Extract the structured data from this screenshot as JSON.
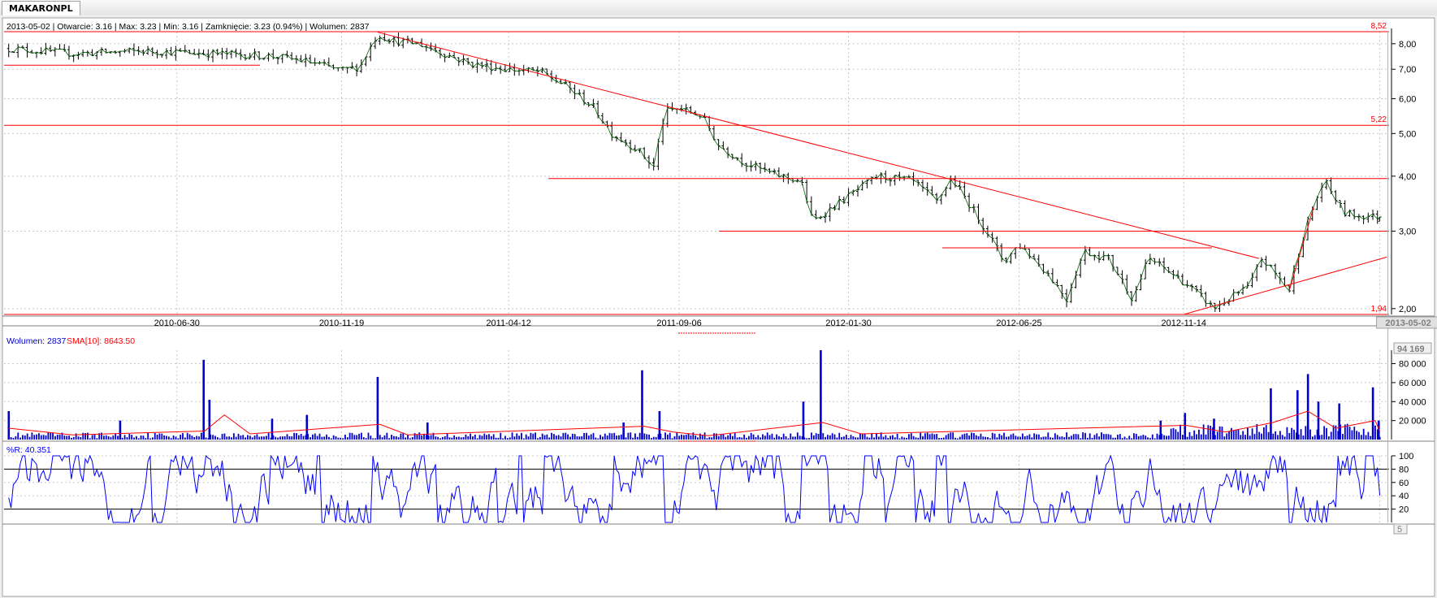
{
  "tab": {
    "label": "MAKARONPL"
  },
  "info_bar": "2013-05-02 | Otwarcie: 3.16 | Max: 3.23 | Min: 3.16 | Zamknięcie: 3.23 (0.94%)  | Wolumen: 2837",
  "cursor_date": "2013-05-02",
  "colors": {
    "grid": "#c8c8c8",
    "price_line": "#006400",
    "bars": "#000000",
    "levels": "#ff0000",
    "volume": "#0000cc",
    "sma": "#ff0000",
    "wr": "#0000ff"
  },
  "chart_data": [
    {
      "type": "ohlc",
      "scale": "log",
      "ylim": [
        1.94,
        8.52
      ],
      "x_ticks": [
        "2010-06-30",
        "2010-11-19",
        "2011-04-12",
        "2011-09-06",
        "2012-01-30",
        "2012-06-25",
        "2012-11-14",
        "2013-05-02"
      ],
      "y_ticks": [
        "8,00",
        "7,00",
        "6,00",
        "5,00",
        "4,00",
        "3,00",
        "2,00"
      ],
      "last": {
        "date": "2013-05-02",
        "open": 3.16,
        "high": 3.23,
        "low": 3.16,
        "close": 3.23,
        "change_pct": 0.94,
        "volume": 2837
      },
      "horizontal_levels": [
        {
          "label": "8,52",
          "value": 8.52
        },
        {
          "label": "5,22",
          "value": 5.22
        },
        {
          "label": "1,94",
          "value": 1.94
        },
        {
          "value": 7.15
        },
        {
          "value": 3.95
        },
        {
          "value": 3.0
        },
        {
          "value": 2.75
        }
      ],
      "trendlines": [
        {
          "from": [
            "2010-12-20",
            8.5
          ],
          "to": [
            "2013-01-18",
            2.6
          ]
        },
        {
          "from": [
            "2012-11-14",
            1.94
          ],
          "to": [
            "2013-05-08",
            2.62
          ]
        },
        {
          "from": [
            "2013-02-13",
            2.2
          ],
          "to": [
            "2013-03-06",
            3.4
          ]
        }
      ],
      "close_path": [
        [
          "2010-02-05",
          7.8
        ],
        [
          "2010-04-01",
          7.6
        ],
        [
          "2010-06-01",
          7.7
        ],
        [
          "2010-08-01",
          7.6
        ],
        [
          "2010-09-20",
          7.5
        ],
        [
          "2010-10-20",
          7.3
        ],
        [
          "2010-11-19",
          6.95
        ],
        [
          "2010-12-05",
          7.1
        ],
        [
          "2010-12-20",
          8.4
        ],
        [
          "2011-01-05",
          8.1
        ],
        [
          "2011-01-25",
          8.0
        ],
        [
          "2011-02-15",
          7.6
        ],
        [
          "2011-03-10",
          7.2
        ],
        [
          "2011-04-12",
          7.0
        ],
        [
          "2011-05-10",
          6.9
        ],
        [
          "2011-06-01",
          6.4
        ],
        [
          "2011-06-25",
          5.7
        ],
        [
          "2011-07-10",
          5.0
        ],
        [
          "2011-08-01",
          4.6
        ],
        [
          "2011-08-15",
          4.2
        ],
        [
          "2011-08-25",
          5.6
        ],
        [
          "2011-09-06",
          5.7
        ],
        [
          "2011-09-25",
          5.5
        ],
        [
          "2011-10-10",
          4.7
        ],
        [
          "2011-11-01",
          4.3
        ],
        [
          "2011-11-25",
          4.05
        ],
        [
          "2011-12-20",
          3.9
        ],
        [
          "2011-12-30",
          3.15
        ],
        [
          "2012-01-30",
          3.6
        ],
        [
          "2012-02-25",
          4.0
        ],
        [
          "2012-03-25",
          3.9
        ],
        [
          "2012-04-15",
          3.5
        ],
        [
          "2012-04-28",
          3.95
        ],
        [
          "2012-05-10",
          3.55
        ],
        [
          "2012-05-25",
          3.1
        ],
        [
          "2012-06-12",
          2.55
        ],
        [
          "2012-06-25",
          2.8
        ],
        [
          "2012-07-20",
          2.4
        ],
        [
          "2012-08-05",
          2.1
        ],
        [
          "2012-08-20",
          2.7
        ],
        [
          "2012-09-10",
          2.6
        ],
        [
          "2012-10-01",
          2.1
        ],
        [
          "2012-10-15",
          2.6
        ],
        [
          "2012-11-14",
          2.3
        ],
        [
          "2012-12-10",
          2.0
        ],
        [
          "2013-01-10",
          2.25
        ],
        [
          "2013-01-20",
          2.6
        ],
        [
          "2013-02-13",
          2.2
        ],
        [
          "2013-02-28",
          3.1
        ],
        [
          "2013-03-15",
          3.9
        ],
        [
          "2013-04-01",
          3.3
        ],
        [
          "2013-04-15",
          3.25
        ],
        [
          "2013-05-02",
          3.23
        ]
      ]
    },
    {
      "type": "bar",
      "title": "Wolumen: 2837",
      "sma_label": "SMA[10]: 8643.50",
      "ylim": [
        0,
        94169
      ],
      "max_label": "94 169",
      "y_ticks": [
        "80 000",
        "60 000",
        "40 000",
        "20 000"
      ],
      "baseline": 4000,
      "spikes": [
        [
          "2010-02-05",
          30000
        ],
        [
          "2010-05-12",
          20000
        ],
        [
          "2010-07-23",
          84000
        ],
        [
          "2010-07-28",
          42000
        ],
        [
          "2010-09-20",
          22000
        ],
        [
          "2010-10-20",
          26000
        ],
        [
          "2010-12-20",
          66000
        ],
        [
          "2011-02-01",
          18000
        ],
        [
          "2011-07-20",
          18000
        ],
        [
          "2011-08-05",
          73000
        ],
        [
          "2011-08-20",
          30000
        ],
        [
          "2011-12-22",
          40000
        ],
        [
          "2012-01-06",
          94169
        ],
        [
          "2012-10-25",
          20000
        ],
        [
          "2012-11-15",
          28000
        ],
        [
          "2012-12-10",
          22000
        ],
        [
          "2013-01-28",
          54000
        ],
        [
          "2013-02-20",
          52000
        ],
        [
          "2013-03-01",
          69000
        ],
        [
          "2013-03-10",
          40000
        ],
        [
          "2013-03-28",
          38000
        ],
        [
          "2013-04-26",
          55000
        ],
        [
          "2013-05-01",
          20000
        ]
      ],
      "sma_path": [
        [
          "2010-02-05",
          12000
        ],
        [
          "2010-04-01",
          5000
        ],
        [
          "2010-07-24",
          9000
        ],
        [
          "2010-08-10",
          26000
        ],
        [
          "2010-09-01",
          6000
        ],
        [
          "2010-12-22",
          16000
        ],
        [
          "2011-01-15",
          5000
        ],
        [
          "2011-08-07",
          14000
        ],
        [
          "2011-09-01",
          8000
        ],
        [
          "2011-10-01",
          4000
        ],
        [
          "2012-01-08",
          18000
        ],
        [
          "2012-02-10",
          6000
        ],
        [
          "2012-11-16",
          15000
        ],
        [
          "2012-12-20",
          8000
        ],
        [
          "2013-01-30",
          18000
        ],
        [
          "2013-03-01",
          30000
        ],
        [
          "2013-03-25",
          12000
        ],
        [
          "2013-04-28",
          20000
        ],
        [
          "2013-05-02",
          8643.5
        ]
      ]
    },
    {
      "type": "line",
      "title": "%R: 40.351",
      "ylim": [
        0,
        100
      ],
      "y_ticks": [
        "100",
        "80",
        "60",
        "40",
        "20"
      ],
      "bottom_label": "5",
      "levels": [
        80,
        20
      ],
      "last_value": 40.351
    }
  ]
}
